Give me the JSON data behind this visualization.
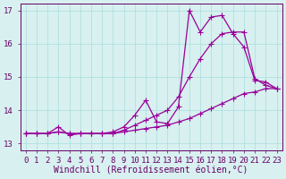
{
  "xlabel": "Windchill (Refroidissement éolien,°C)",
  "ylabel": "",
  "bg_color": "#d8f0f0",
  "grid_color": "#aadddd",
  "line_color": "#990099",
  "xlim": [
    -0.5,
    23.5
  ],
  "ylim": [
    12.8,
    17.2
  ],
  "yticks": [
    13,
    14,
    15,
    16,
    17
  ],
  "xticks": [
    0,
    1,
    2,
    3,
    4,
    5,
    6,
    7,
    8,
    9,
    10,
    11,
    12,
    13,
    14,
    15,
    16,
    17,
    18,
    19,
    20,
    21,
    22,
    23
  ],
  "series": [
    [
      13.3,
      13.3,
      13.3,
      13.35,
      13.3,
      13.3,
      13.3,
      13.3,
      13.3,
      13.35,
      13.4,
      13.45,
      13.5,
      13.55,
      13.65,
      13.75,
      13.9,
      14.05,
      14.2,
      14.35,
      14.5,
      14.55,
      14.65,
      14.65
    ],
    [
      13.3,
      13.3,
      13.3,
      13.35,
      13.3,
      13.3,
      13.3,
      13.3,
      13.3,
      13.4,
      13.55,
      13.7,
      13.85,
      14.0,
      14.4,
      15.0,
      15.55,
      16.0,
      16.3,
      16.35,
      16.35,
      14.95,
      14.75,
      14.65
    ],
    [
      13.3,
      13.3,
      13.3,
      13.5,
      13.25,
      13.3,
      13.3,
      13.3,
      13.35,
      13.5,
      13.85,
      14.3,
      13.65,
      13.6,
      14.1,
      17.0,
      16.35,
      16.8,
      16.85,
      16.3,
      15.9,
      14.9,
      14.85,
      14.65
    ]
  ],
  "xlabel_fontsize": 7,
  "ylabel_fontsize": 7,
  "tick_fontsize": 6.5,
  "marker": "+",
  "markersize": 4,
  "linewidth": 0.9
}
